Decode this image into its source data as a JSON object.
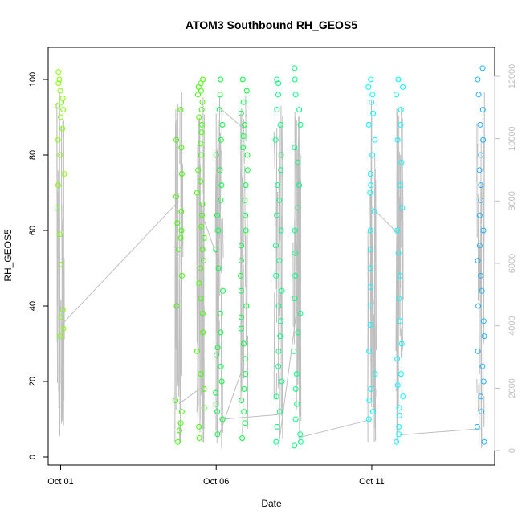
{
  "chart_data": {
    "type": "scatter",
    "title": "ATOM3 Southbound RH_GEOS5",
    "xlabel": "Date",
    "ylabel": "RH_GEOS5",
    "x_ticks": [
      "Oct 01",
      "Oct 06",
      "Oct 11"
    ],
    "xlim": [
      "2016-10-01",
      "2016-10-15"
    ],
    "ylim": [
      0,
      104
    ],
    "y_ticks": [
      0,
      20,
      40,
      60,
      80,
      100
    ],
    "y2_ticks": [
      0,
      2000,
      4000,
      6000,
      8000,
      10000,
      12000
    ],
    "y2lim": [
      -100,
      12500
    ],
    "grid": false,
    "legend": "none",
    "colors": {
      "altitude_line": "#bebebe",
      "right_axis": "#bdbdbd",
      "flight_colors": [
        "#80ff00",
        "#40ff00",
        "#00ff40",
        "#00ff80",
        "#00ffff",
        "#20b0ff"
      ]
    },
    "flights": [
      {
        "day": 1.0,
        "color": "#80ff00",
        "rh": [
          32,
          34,
          37,
          39,
          51,
          59,
          66,
          72,
          75,
          80,
          84,
          87,
          90,
          92,
          93,
          94,
          95,
          97,
          99,
          100,
          102
        ]
      },
      {
        "day": 4.8,
        "color": "#40ff00",
        "rh": [
          4,
          7,
          9,
          12,
          15,
          40,
          48,
          55,
          58,
          60,
          62,
          65,
          69,
          75,
          82,
          84,
          92
        ]
      },
      {
        "day": 5.5,
        "color": "#40ff00",
        "rh": [
          5,
          8,
          13,
          18,
          22,
          28,
          33,
          38,
          42,
          46,
          50,
          52,
          55,
          58,
          61,
          64,
          67,
          70,
          73,
          76,
          80,
          83,
          86,
          88,
          90,
          92,
          94,
          96,
          97,
          98,
          99,
          100
        ]
      },
      {
        "day": 6.1,
        "color": "#00ff40",
        "rh": [
          6,
          10,
          12,
          14,
          17,
          20,
          24,
          27,
          29,
          33,
          38,
          44,
          50,
          55,
          60,
          64,
          68,
          72,
          76,
          80,
          84,
          88,
          92,
          96,
          100
        ]
      },
      {
        "day": 6.9,
        "color": "#00ff40",
        "rh": [
          5,
          9,
          12,
          15,
          18,
          22,
          26,
          30,
          34,
          37,
          40,
          44,
          48,
          52,
          56,
          60,
          64,
          68,
          72,
          76,
          80,
          82,
          85,
          88,
          91,
          94,
          97,
          100
        ]
      },
      {
        "day": 8.0,
        "color": "#00ff80",
        "rh": [
          4,
          8,
          12,
          16,
          20,
          24,
          28,
          32,
          36,
          40,
          44,
          48,
          52,
          56,
          60,
          64,
          68,
          72,
          76,
          80,
          84,
          88,
          92,
          96,
          99,
          100
        ]
      },
      {
        "day": 8.6,
        "color": "#00ff80",
        "rh": [
          3,
          4,
          6,
          10,
          14,
          18,
          22,
          28,
          33,
          38,
          42,
          48,
          54,
          60,
          66,
          72,
          78,
          82,
          88,
          92,
          96,
          100,
          103
        ]
      },
      {
        "day": 11.0,
        "color": "#00ffff",
        "rh": [
          10,
          12,
          15,
          18,
          22,
          28,
          35,
          40,
          45,
          50,
          55,
          60,
          65,
          70,
          72,
          75,
          80,
          84,
          88,
          91,
          94,
          96,
          98,
          100
        ]
      },
      {
        "day": 11.9,
        "color": "#00ffff",
        "rh": [
          4,
          6,
          8,
          11,
          13,
          16,
          19,
          22,
          26,
          30,
          36,
          42,
          48,
          54,
          60,
          66,
          72,
          78,
          84,
          88,
          92,
          96,
          98,
          100
        ]
      },
      {
        "day": 14.5,
        "color": "#20b0ff",
        "rh": [
          4,
          8,
          12,
          16,
          20,
          24,
          28,
          32,
          36,
          40,
          44,
          48,
          52,
          56,
          60,
          64,
          68,
          72,
          76,
          80,
          84,
          88,
          92,
          96,
          100,
          103
        ]
      }
    ],
    "altitude_connections": [
      {
        "from": [
          1.0,
          4000
        ],
        "to": [
          4.8,
          8000
        ]
      },
      {
        "from": [
          4.8,
          1500
        ],
        "to": [
          5.5,
          2000
        ]
      },
      {
        "from": [
          5.5,
          7700
        ],
        "to": [
          6.1,
          6000
        ]
      },
      {
        "from": [
          6.1,
          500
        ],
        "to": [
          6.9,
          2800
        ]
      },
      {
        "from": [
          6.1,
          11000
        ],
        "to": [
          6.9,
          10300
        ]
      },
      {
        "from": [
          6.1,
          1000
        ],
        "to": [
          8.0,
          1150
        ]
      },
      {
        "from": [
          8.0,
          100
        ],
        "to": [
          8.6,
          4600
        ]
      },
      {
        "from": [
          8.6,
          400
        ],
        "to": [
          11.0,
          1000
        ]
      },
      {
        "from": [
          11.0,
          7800
        ],
        "to": [
          11.9,
          6900
        ]
      },
      {
        "from": [
          11.9,
          500
        ],
        "to": [
          14.5,
          700
        ]
      }
    ]
  }
}
